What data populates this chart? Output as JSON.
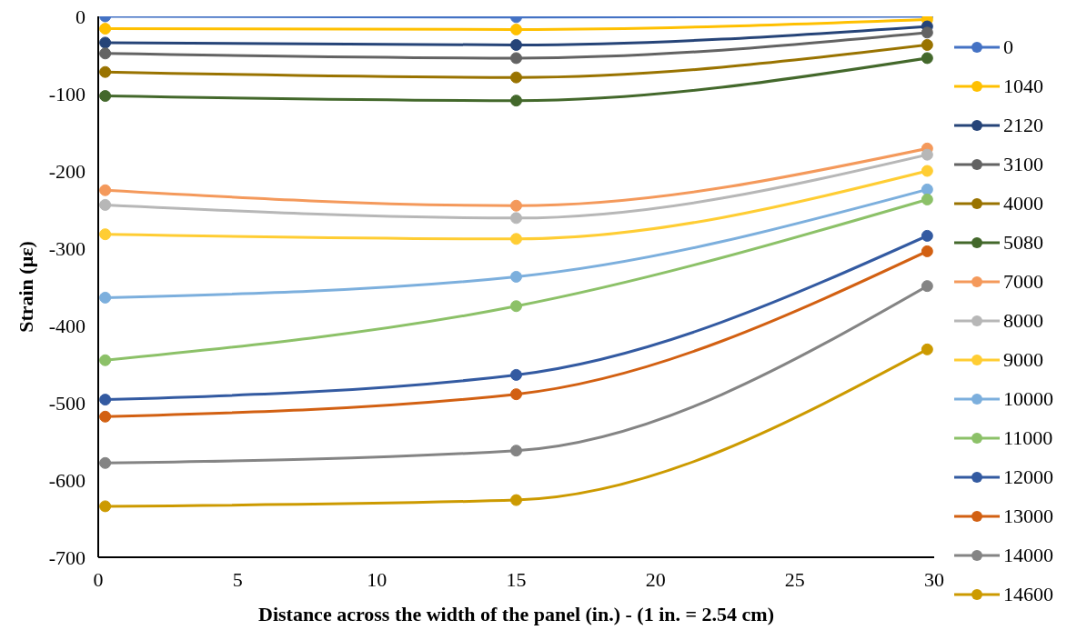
{
  "chart_data": {
    "type": "line",
    "xlabel": "Distance across the width of the panel (in.) - (1 in. = 2.54 cm)",
    "ylabel": "Strain (με)",
    "x": [
      0.25,
      15,
      29.75
    ],
    "series": [
      {
        "name": "0",
        "color": "#4472c4",
        "values": [
          0,
          -1,
          0
        ]
      },
      {
        "name": "1040",
        "color": "#ffc000",
        "values": [
          -16,
          -17,
          -4
        ]
      },
      {
        "name": "2120",
        "color": "#264478",
        "values": [
          -34,
          -37,
          -13
        ]
      },
      {
        "name": "3100",
        "color": "#636363",
        "values": [
          -48,
          -54,
          -21
        ]
      },
      {
        "name": "4000",
        "color": "#997300",
        "values": [
          -72,
          -79,
          -37
        ]
      },
      {
        "name": "5080",
        "color": "#43682b",
        "values": [
          -103,
          -109,
          -54
        ]
      },
      {
        "name": "7000",
        "color": "#f4995b",
        "values": [
          -225,
          -245,
          -171
        ]
      },
      {
        "name": "8000",
        "color": "#b7b7b7",
        "values": [
          -244,
          -261,
          -179
        ]
      },
      {
        "name": "9000",
        "color": "#ffcd33",
        "values": [
          -282,
          -288,
          -200
        ]
      },
      {
        "name": "10000",
        "color": "#7cafdd",
        "values": [
          -364,
          -337,
          -224
        ]
      },
      {
        "name": "11000",
        "color": "#8cc168",
        "values": [
          -445,
          -375,
          -237
        ]
      },
      {
        "name": "12000",
        "color": "#335aa1",
        "values": [
          -496,
          -464,
          -284
        ]
      },
      {
        "name": "13000",
        "color": "#d26012",
        "values": [
          -518,
          -489,
          -304
        ]
      },
      {
        "name": "14000",
        "color": "#848484",
        "values": [
          -578,
          -562,
          -349
        ]
      },
      {
        "name": "14600",
        "color": "#cc9a00",
        "values": [
          -634,
          -626,
          -431
        ]
      }
    ],
    "xlim": [
      0,
      30
    ],
    "xticks": [
      0,
      5,
      10,
      15,
      20,
      25,
      30
    ],
    "ylim": [
      -700,
      0
    ],
    "yticks": [
      -700,
      -600,
      -500,
      -400,
      -300,
      -200,
      -100,
      0
    ],
    "grid": false,
    "legend": "right",
    "marker": "circle",
    "line_style": "solid"
  }
}
